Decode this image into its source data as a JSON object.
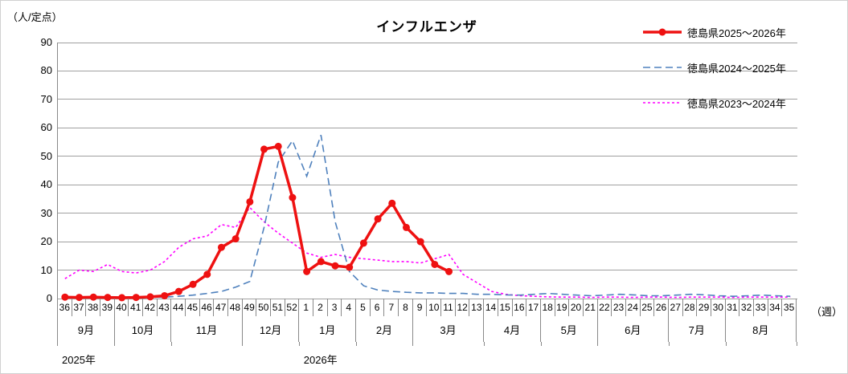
{
  "title": "インフルエンザ",
  "y_axis_label": "（人/定点）",
  "x_axis_unit_label": "（週）",
  "legend": [
    {
      "label": "徳島県2025～2026年",
      "color": "#ee1111",
      "style": "solid-marker"
    },
    {
      "label": "徳島県2024～2025年",
      "color": "#4f81bd",
      "style": "dashed"
    },
    {
      "label": "徳島県2023～2024年",
      "color": "#ff00ff",
      "style": "dotted"
    }
  ],
  "chart_data": {
    "type": "line",
    "title": "インフルエンザ",
    "ylabel": "（人/定点）",
    "xlabel": "（週）",
    "ylim": [
      0,
      90
    ],
    "ytick_step": 10,
    "grid": true,
    "legend_position": "top-right",
    "x_weeks": [
      36,
      37,
      38,
      39,
      40,
      41,
      42,
      43,
      44,
      45,
      46,
      47,
      48,
      49,
      50,
      51,
      52,
      1,
      2,
      3,
      4,
      5,
      6,
      7,
      8,
      9,
      10,
      11,
      12,
      13,
      14,
      15,
      16,
      17,
      18,
      19,
      20,
      21,
      22,
      23,
      24,
      25,
      26,
      27,
      28,
      29,
      30,
      31,
      32,
      33,
      34,
      35
    ],
    "months": [
      {
        "label": "9月",
        "weeks": 4
      },
      {
        "label": "10月",
        "weeks": 4
      },
      {
        "label": "11月",
        "weeks": 5
      },
      {
        "label": "12月",
        "weeks": 4
      },
      {
        "label": "1月",
        "weeks": 4
      },
      {
        "label": "2月",
        "weeks": 4
      },
      {
        "label": "3月",
        "weeks": 5
      },
      {
        "label": "4月",
        "weeks": 4
      },
      {
        "label": "5月",
        "weeks": 4
      },
      {
        "label": "6月",
        "weeks": 5
      },
      {
        "label": "7月",
        "weeks": 4
      },
      {
        "label": "8月",
        "weeks": 5
      }
    ],
    "years": [
      {
        "label": "2025年",
        "week_index": 0
      },
      {
        "label": "2026年",
        "week_index": 17
      }
    ],
    "series": [
      {
        "name": "徳島県2025～2026年",
        "color": "#ee1111",
        "dash": "solid",
        "marker": true,
        "values": [
          0.5,
          0.4,
          0.5,
          0.4,
          0.3,
          0.4,
          0.6,
          1,
          2.5,
          5,
          8.5,
          18,
          21,
          34,
          52.5,
          53.5,
          35.5,
          9.5,
          13,
          11.5,
          11,
          19.5,
          28,
          33.5,
          25,
          20,
          12,
          9.5,
          null,
          null,
          null,
          null,
          null,
          null,
          null,
          null,
          null,
          null,
          null,
          null,
          null,
          null,
          null,
          null,
          null,
          null,
          null,
          null,
          null,
          null,
          null,
          null
        ]
      },
      {
        "name": "徳島県2024～2025年",
        "color": "#4f81bd",
        "dash": "dashed",
        "marker": false,
        "values": [
          0.3,
          0.3,
          0.3,
          0.3,
          0.3,
          0.4,
          0.4,
          0.5,
          0.8,
          1.2,
          1.8,
          2.5,
          4,
          6,
          25,
          48,
          55.5,
          43,
          57.5,
          27,
          9.5,
          4.5,
          3,
          2.5,
          2.2,
          2,
          2,
          1.8,
          1.8,
          1.5,
          1.5,
          1.3,
          1.2,
          1.5,
          1.8,
          1.5,
          1.2,
          1,
          1.2,
          1.5,
          1.3,
          1,
          1,
          1.2,
          1.5,
          1.3,
          1,
          0.8,
          1,
          1.2,
          1,
          0.8
        ]
      },
      {
        "name": "徳島県2023～2024年",
        "color": "#ff00ff",
        "dash": "dotted",
        "marker": false,
        "values": [
          7,
          10,
          9.5,
          12,
          9.5,
          9,
          10,
          13,
          18,
          21,
          22,
          26,
          25,
          32,
          27,
          23,
          19.5,
          16,
          14.5,
          15.5,
          14.5,
          14,
          13.5,
          13,
          13,
          12.5,
          14,
          15.5,
          8.5,
          5.5,
          2.5,
          1.5,
          1,
          0.8,
          0.6,
          0.5,
          0.5,
          0.4,
          0.5,
          0.5,
          0.4,
          0.5,
          0.5,
          0.4,
          0.5,
          0.5,
          0.5,
          0.4,
          0.5,
          0.5,
          0.5,
          0.5
        ]
      }
    ]
  }
}
